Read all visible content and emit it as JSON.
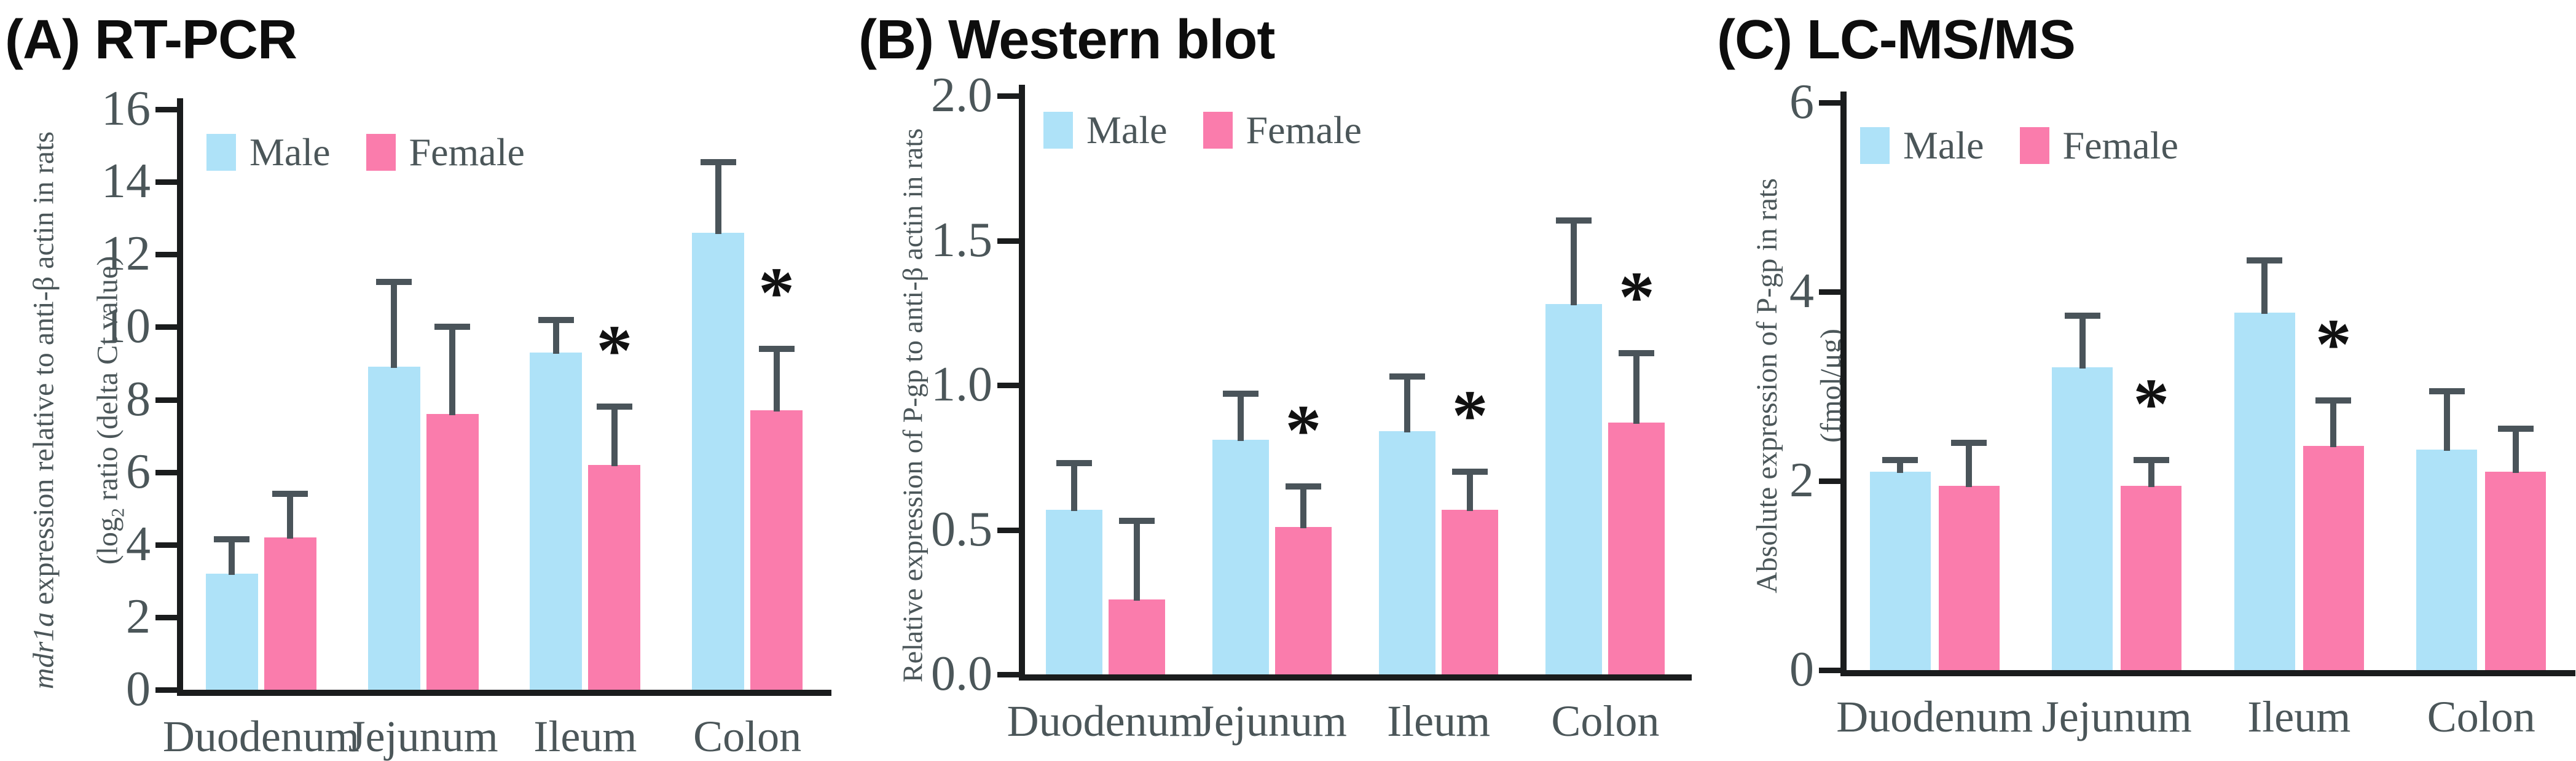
{
  "figure": {
    "symbol_male": "Male",
    "symbol_female": "Female"
  },
  "colors": {
    "male": "#AEE2F8",
    "female": "#FA7CAC",
    "error_bar": "#4A545A",
    "axis": "#1A1C1D",
    "label_text": "#4B5659",
    "title_text": "#0D0D0D"
  },
  "chart_data": [
    {
      "type": "bar",
      "panel": "A",
      "title": "(A) RT-PCR",
      "ylabel": {
        "italic": "mdr1a",
        "line1_rest": " expression relative to anti-β actin in rats",
        "line2_pre": "(log",
        "line2_sub": "2",
        "line2_post": " ratio (delta Ct value)"
      },
      "ylim": [
        0,
        16
      ],
      "yticks": [
        "0",
        "2",
        "4",
        "6",
        "8",
        "10",
        "12",
        "14",
        "16"
      ],
      "grid": false,
      "legend_position": "top-left-inside",
      "categories": [
        "Duodenum",
        "Jejunum",
        "Ileum",
        "Colon"
      ],
      "series": [
        {
          "name": "Male",
          "values": [
            3.2,
            8.9,
            9.3,
            12.6
          ],
          "errors": [
            0.95,
            2.35,
            0.9,
            1.95
          ],
          "sig": [
            "",
            "",
            "",
            ""
          ]
        },
        {
          "name": "Female",
          "values": [
            4.2,
            7.6,
            6.2,
            7.7
          ],
          "errors": [
            1.2,
            2.4,
            1.6,
            1.7
          ],
          "sig": [
            "",
            "",
            "*",
            "*"
          ]
        }
      ]
    },
    {
      "type": "bar",
      "panel": "B",
      "title": "(B) Western blot",
      "ylabel": {
        "line1": "Relative expression of P-gp to anti-β actin in rats"
      },
      "ylim": [
        0,
        2.0
      ],
      "yticks": [
        "0.0",
        "0.5",
        "1.0",
        "1.5",
        "2.0"
      ],
      "grid": false,
      "legend_position": "top-left-inside",
      "categories": [
        "Duodenum",
        "Jejunum",
        "Ileum",
        "Colon"
      ],
      "series": [
        {
          "name": "Male",
          "values": [
            0.57,
            0.81,
            0.84,
            1.28
          ],
          "errors": [
            0.16,
            0.16,
            0.19,
            0.29
          ],
          "sig": [
            "",
            "",
            "",
            ""
          ]
        },
        {
          "name": "Female",
          "values": [
            0.26,
            0.51,
            0.57,
            0.87
          ],
          "errors": [
            0.27,
            0.14,
            0.13,
            0.24
          ],
          "sig": [
            "",
            "*",
            "*",
            "*"
          ]
        }
      ]
    },
    {
      "type": "bar",
      "panel": "C",
      "title": "(C) LC-MS/MS",
      "ylabel": {
        "line1": "Absolute expression of P-gp in rats",
        "line2": "(fmol/μg)"
      },
      "ylim": [
        0,
        6
      ],
      "yticks": [
        "0",
        "2",
        "4",
        "6"
      ],
      "grid": false,
      "legend_position": "top-left-inside",
      "categories": [
        "Duodenum",
        "Jejunum",
        "Ileum",
        "Colon"
      ],
      "series": [
        {
          "name": "Male",
          "values": [
            2.1,
            3.2,
            3.78,
            2.33
          ],
          "errors": [
            0.12,
            0.55,
            0.55,
            0.62
          ],
          "sig": [
            "",
            "",
            "",
            ""
          ]
        },
        {
          "name": "Female",
          "values": [
            1.95,
            1.95,
            2.37,
            2.1
          ],
          "errors": [
            0.45,
            0.27,
            0.48,
            0.45
          ],
          "sig": [
            "",
            "*",
            "*",
            ""
          ]
        }
      ]
    }
  ]
}
